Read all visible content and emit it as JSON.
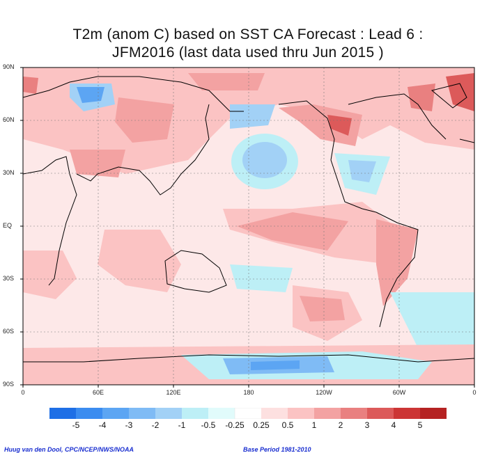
{
  "title": {
    "line1": "T2m (anom C) based on SST CA Forecast : Lead 6 :",
    "line2": "JFM2016 (last data used thru Jun 2015 )"
  },
  "axes": {
    "lat_labels": [
      "90N",
      "60N",
      "30N",
      "EQ",
      "30S",
      "60S",
      "90S"
    ],
    "lon_labels": [
      "0",
      "60E",
      "120E",
      "180",
      "120W",
      "60W",
      "0"
    ]
  },
  "legend": {
    "labels": [
      "-5",
      "-4",
      "-3",
      "-2",
      "-1",
      "-0.5",
      "-0.25",
      "0.25",
      "0.5",
      "1",
      "2",
      "3",
      "4",
      "5"
    ],
    "colors": [
      "#1e6fe6",
      "#3b8cf0",
      "#5ca5f3",
      "#7fbbf5",
      "#a2d1f6",
      "#bdeff6",
      "#e1fbfb",
      "#ffffff",
      "#fde0e0",
      "#fbc3c3",
      "#f3a2a2",
      "#e98080",
      "#dc5a5a",
      "#cc3535",
      "#b52222"
    ]
  },
  "footer": {
    "left": "Huug van den Dool, CPC/NCEP/NWS/NOAA",
    "right": "Base Period 1981-2010"
  }
}
